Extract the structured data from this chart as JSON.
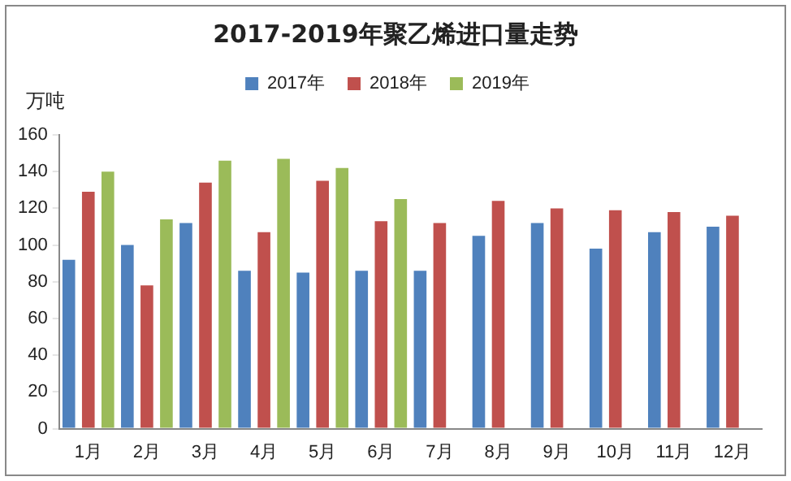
{
  "chart_data": {
    "type": "bar",
    "title": "2017-2019年聚乙烯进口量走势",
    "ylabel": "万吨",
    "categories": [
      "1月",
      "2月",
      "3月",
      "4月",
      "5月",
      "6月",
      "7月",
      "8月",
      "9月",
      "10月",
      "11月",
      "12月"
    ],
    "series": [
      {
        "name": "2017年",
        "color": "#4f81bd",
        "values": [
          92,
          100,
          112,
          86,
          85,
          86,
          86,
          105,
          112,
          98,
          107,
          110
        ]
      },
      {
        "name": "2018年",
        "color": "#c0504d",
        "values": [
          129,
          78,
          134,
          107,
          135,
          113,
          112,
          124,
          120,
          119,
          118,
          116
        ]
      },
      {
        "name": "2019年",
        "color": "#9bbb59",
        "values": [
          140,
          114,
          146,
          147,
          142,
          125,
          null,
          null,
          null,
          null,
          null,
          null
        ]
      }
    ],
    "ylim": [
      0,
      160
    ],
    "yticks": [
      0,
      20,
      40,
      60,
      80,
      100,
      120,
      140,
      160
    ],
    "grid": false,
    "legend": "top"
  }
}
